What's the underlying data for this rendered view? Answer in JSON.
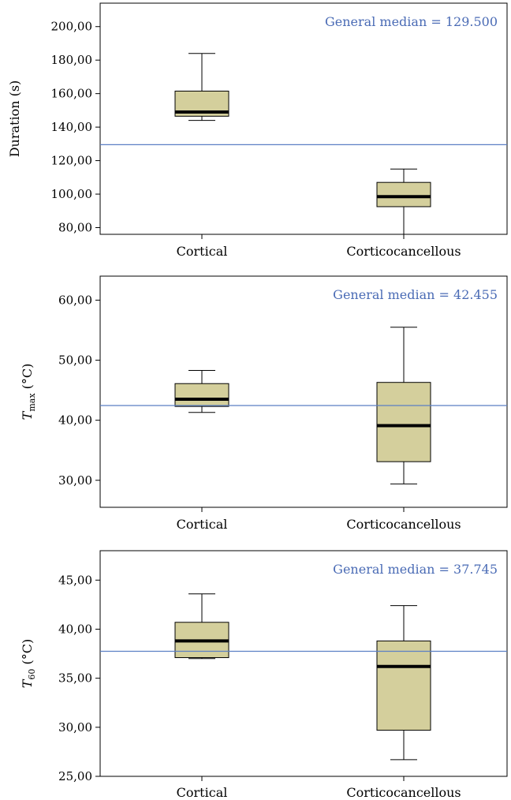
{
  "chart_data": [
    {
      "type": "box",
      "ylabel": "Duration (s)",
      "ylabel_parts": [],
      "categories": [
        "Cortical",
        "Corticocancellous"
      ],
      "boxes": [
        {
          "min": 144,
          "q1": 146.5,
          "median": 149,
          "q3": 161.5,
          "max": 184
        },
        {
          "min": 75,
          "q1": 92.5,
          "median": 98.5,
          "q3": 107,
          "max": 115
        }
      ],
      "reference_line": {
        "label": "General median = 129.500",
        "value": 129.5
      },
      "ylim": [
        76,
        214
      ],
      "yticks": [
        80,
        100,
        120,
        140,
        160,
        180,
        200
      ],
      "ytick_labels": [
        "80,00",
        "100,00",
        "120,00",
        "140,00",
        "160,00",
        "180,00",
        "200,00"
      ]
    },
    {
      "type": "box",
      "ylabel": "",
      "ylabel_parts": [
        {
          "text": "T",
          "style": "italic"
        },
        {
          "text": "max",
          "style": "sub"
        },
        {
          "text": " (°C)",
          "style": "normal"
        }
      ],
      "categories": [
        "Cortical",
        "Corticocancellous"
      ],
      "boxes": [
        {
          "min": 41.3,
          "q1": 42.3,
          "median": 43.5,
          "q3": 46.1,
          "max": 48.3
        },
        {
          "min": 29.4,
          "q1": 33.1,
          "median": 39.1,
          "q3": 46.3,
          "max": 55.5
        }
      ],
      "reference_line": {
        "label": "General median = 42.455",
        "value": 42.455
      },
      "ylim": [
        25.5,
        64
      ],
      "yticks": [
        30,
        40,
        50,
        60
      ],
      "ytick_labels": [
        "30,00",
        "40,00",
        "50,00",
        "60,00"
      ]
    },
    {
      "type": "box",
      "ylabel": "",
      "ylabel_parts": [
        {
          "text": "T",
          "style": "italic"
        },
        {
          "text": "60",
          "style": "sub"
        },
        {
          "text": " (°C)",
          "style": "normal"
        }
      ],
      "categories": [
        "Cortical",
        "Corticocancellous"
      ],
      "boxes": [
        {
          "min": 37,
          "q1": 37.1,
          "median": 38.8,
          "q3": 40.7,
          "max": 43.6
        },
        {
          "min": 26.7,
          "q1": 29.7,
          "median": 36.2,
          "q3": 38.8,
          "max": 42.4
        }
      ],
      "reference_line": {
        "label": "General median = 37.745",
        "value": 37.745
      },
      "ylim": [
        25,
        48
      ],
      "yticks": [
        25,
        30,
        35,
        40,
        45
      ],
      "ytick_labels": [
        "25,00",
        "30,00",
        "35,00",
        "40,00",
        "45,00"
      ]
    }
  ],
  "colors": {
    "box_fill": "#d4cf9c",
    "reference_line": "#5b7fc4",
    "reference_text": "#4a6bb5",
    "ink": "#000000"
  }
}
